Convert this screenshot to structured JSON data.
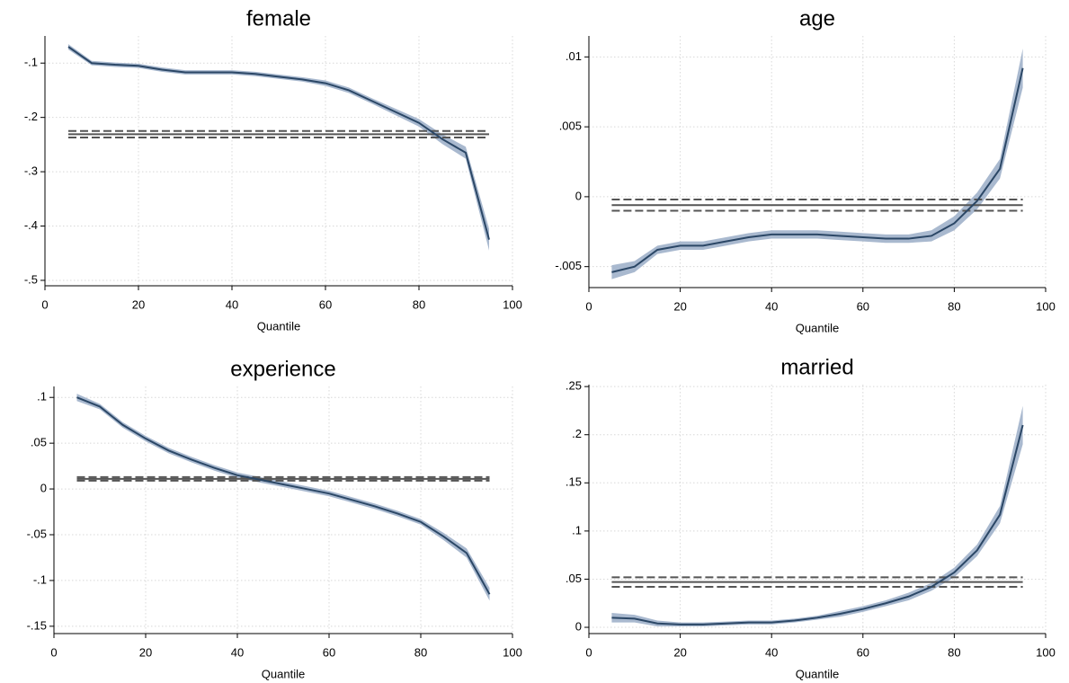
{
  "chart_data": [
    {
      "type": "line",
      "title": "female",
      "x_label": "Quantile",
      "x": [
        5,
        10,
        15,
        20,
        25,
        30,
        35,
        40,
        45,
        50,
        55,
        60,
        65,
        70,
        75,
        80,
        85,
        90,
        95
      ],
      "values": [
        -0.07,
        -0.1,
        -0.103,
        -0.105,
        -0.112,
        -0.117,
        -0.117,
        -0.117,
        -0.12,
        -0.125,
        -0.13,
        -0.137,
        -0.15,
        -0.17,
        -0.19,
        -0.21,
        -0.24,
        -0.265,
        -0.425
      ],
      "lower": [
        -0.075,
        -0.104,
        -0.107,
        -0.109,
        -0.116,
        -0.121,
        -0.121,
        -0.121,
        -0.124,
        -0.129,
        -0.134,
        -0.142,
        -0.155,
        -0.175,
        -0.196,
        -0.217,
        -0.249,
        -0.276,
        -0.445
      ],
      "upper": [
        -0.065,
        -0.096,
        -0.099,
        -0.101,
        -0.108,
        -0.113,
        -0.113,
        -0.113,
        -0.116,
        -0.121,
        -0.126,
        -0.132,
        -0.145,
        -0.165,
        -0.184,
        -0.203,
        -0.231,
        -0.254,
        -0.405
      ],
      "ols": -0.231,
      "ols_lower": -0.237,
      "ols_upper": -0.225,
      "color": "#2b4766",
      "band_color": "#a9b9cf",
      "ols_color": "#555555",
      "xlim": [
        0,
        100
      ],
      "xticks": [
        0,
        20,
        40,
        60,
        80,
        100
      ],
      "ylim": [
        -0.51,
        -0.05
      ],
      "yticks": [
        {
          "value": -0.1,
          "label": "-.1"
        },
        {
          "value": -0.2,
          "label": "-.2"
        },
        {
          "value": -0.3,
          "label": "-.3"
        },
        {
          "value": -0.4,
          "label": "-.4"
        },
        {
          "value": -0.5,
          "label": "-.5"
        }
      ],
      "grid": true
    },
    {
      "type": "line",
      "title": "age",
      "x_label": "Quantile",
      "x": [
        5,
        10,
        15,
        20,
        25,
        30,
        35,
        40,
        45,
        50,
        55,
        60,
        65,
        70,
        75,
        80,
        85,
        90,
        95
      ],
      "values": [
        -0.0054,
        -0.005,
        -0.0038,
        -0.0035,
        -0.0035,
        -0.0032,
        -0.0029,
        -0.0027,
        -0.0027,
        -0.0027,
        -0.0028,
        -0.0029,
        -0.003,
        -0.003,
        -0.0028,
        -0.0019,
        -0.0003,
        0.002,
        0.0092
      ],
      "lower": [
        -0.0059,
        -0.0054,
        -0.0041,
        -0.0038,
        -0.0038,
        -0.0035,
        -0.0032,
        -0.003,
        -0.003,
        -0.003,
        -0.0031,
        -0.0032,
        -0.0033,
        -0.0033,
        -0.0032,
        -0.0024,
        -0.0009,
        0.0013,
        0.0078
      ],
      "upper": [
        -0.0049,
        -0.0046,
        -0.0035,
        -0.0032,
        -0.0032,
        -0.0029,
        -0.0026,
        -0.0024,
        -0.0024,
        -0.0024,
        -0.0025,
        -0.0026,
        -0.0027,
        -0.0027,
        -0.0024,
        -0.0014,
        0.0003,
        0.0027,
        0.0106
      ],
      "ols": -0.0006,
      "ols_lower": -0.001,
      "ols_upper": -0.0002,
      "color": "#2b4766",
      "band_color": "#a9b9cf",
      "ols_color": "#555555",
      "xlim": [
        0,
        100
      ],
      "xticks": [
        0,
        20,
        40,
        60,
        80,
        100
      ],
      "ylim": [
        -0.0065,
        0.0115
      ],
      "yticks": [
        {
          "value": -0.005,
          "label": "-.005"
        },
        0,
        {
          "value": 0.005,
          "label": ".005"
        },
        {
          "value": 0.01,
          "label": ".01"
        }
      ],
      "grid": true
    },
    {
      "type": "line",
      "title": "experience",
      "x_label": "Quantile",
      "x": [
        5,
        10,
        15,
        20,
        25,
        30,
        35,
        40,
        45,
        50,
        55,
        60,
        65,
        70,
        75,
        80,
        85,
        90,
        95
      ],
      "values": [
        0.1,
        0.09,
        0.07,
        0.055,
        0.042,
        0.032,
        0.023,
        0.015,
        0.01,
        0.005,
        0.0,
        -0.005,
        -0.012,
        -0.019,
        -0.027,
        -0.036,
        -0.052,
        -0.07,
        -0.115
      ],
      "lower": [
        0.096,
        0.087,
        0.067,
        0.052,
        0.039,
        0.029,
        0.02,
        0.012,
        0.007,
        0.002,
        -0.003,
        -0.008,
        -0.015,
        -0.022,
        -0.03,
        -0.039,
        -0.056,
        -0.075,
        -0.122
      ],
      "upper": [
        0.104,
        0.093,
        0.073,
        0.058,
        0.045,
        0.035,
        0.026,
        0.018,
        0.013,
        0.008,
        0.003,
        -0.002,
        -0.009,
        -0.016,
        -0.024,
        -0.033,
        -0.048,
        -0.065,
        -0.108
      ],
      "ols": 0.011,
      "ols_lower": 0.009,
      "ols_upper": 0.013,
      "color": "#2b4766",
      "band_color": "#a9b9cf",
      "ols_color": "#555555",
      "xlim": [
        0,
        100
      ],
      "xticks": [
        0,
        20,
        40,
        60,
        80,
        100
      ],
      "ylim": [
        -0.158,
        0.112
      ],
      "yticks": [
        {
          "value": 0.1,
          "label": ".1"
        },
        {
          "value": 0.05,
          "label": ".05"
        },
        0,
        {
          "value": -0.05,
          "label": "-.05"
        },
        {
          "value": -0.1,
          "label": "-.1"
        },
        {
          "value": -0.15,
          "label": "-.15"
        }
      ],
      "grid": true
    },
    {
      "type": "line",
      "title": "married",
      "x_label": "Quantile",
      "x": [
        5,
        10,
        15,
        20,
        25,
        30,
        35,
        40,
        45,
        50,
        55,
        60,
        65,
        70,
        75,
        80,
        85,
        90,
        95
      ],
      "values": [
        0.01,
        0.009,
        0.004,
        0.003,
        0.003,
        0.004,
        0.005,
        0.005,
        0.007,
        0.01,
        0.014,
        0.019,
        0.025,
        0.032,
        0.042,
        0.057,
        0.08,
        0.117,
        0.21
      ],
      "lower": [
        0.005,
        0.005,
        0.001,
        0.001,
        0.001,
        0.002,
        0.003,
        0.003,
        0.005,
        0.008,
        0.011,
        0.016,
        0.022,
        0.028,
        0.038,
        0.052,
        0.074,
        0.108,
        0.19
      ],
      "upper": [
        0.015,
        0.013,
        0.007,
        0.005,
        0.005,
        0.006,
        0.007,
        0.007,
        0.009,
        0.012,
        0.017,
        0.022,
        0.028,
        0.036,
        0.046,
        0.062,
        0.086,
        0.126,
        0.23
      ],
      "ols": 0.047,
      "ols_lower": 0.042,
      "ols_upper": 0.052,
      "color": "#2b4766",
      "band_color": "#a9b9cf",
      "ols_color": "#555555",
      "xlim": [
        0,
        100
      ],
      "xticks": [
        0,
        20,
        40,
        60,
        80,
        100
      ],
      "ylim": [
        -0.0065,
        0.252
      ],
      "yticks": [
        0,
        {
          "value": 0.05,
          "label": ".05"
        },
        {
          "value": 0.1,
          "label": ".1"
        },
        {
          "value": 0.15,
          "label": ".15"
        },
        {
          "value": 0.2,
          "label": ".2"
        },
        {
          "value": 0.25,
          "label": ".25"
        }
      ],
      "grid": true
    }
  ]
}
